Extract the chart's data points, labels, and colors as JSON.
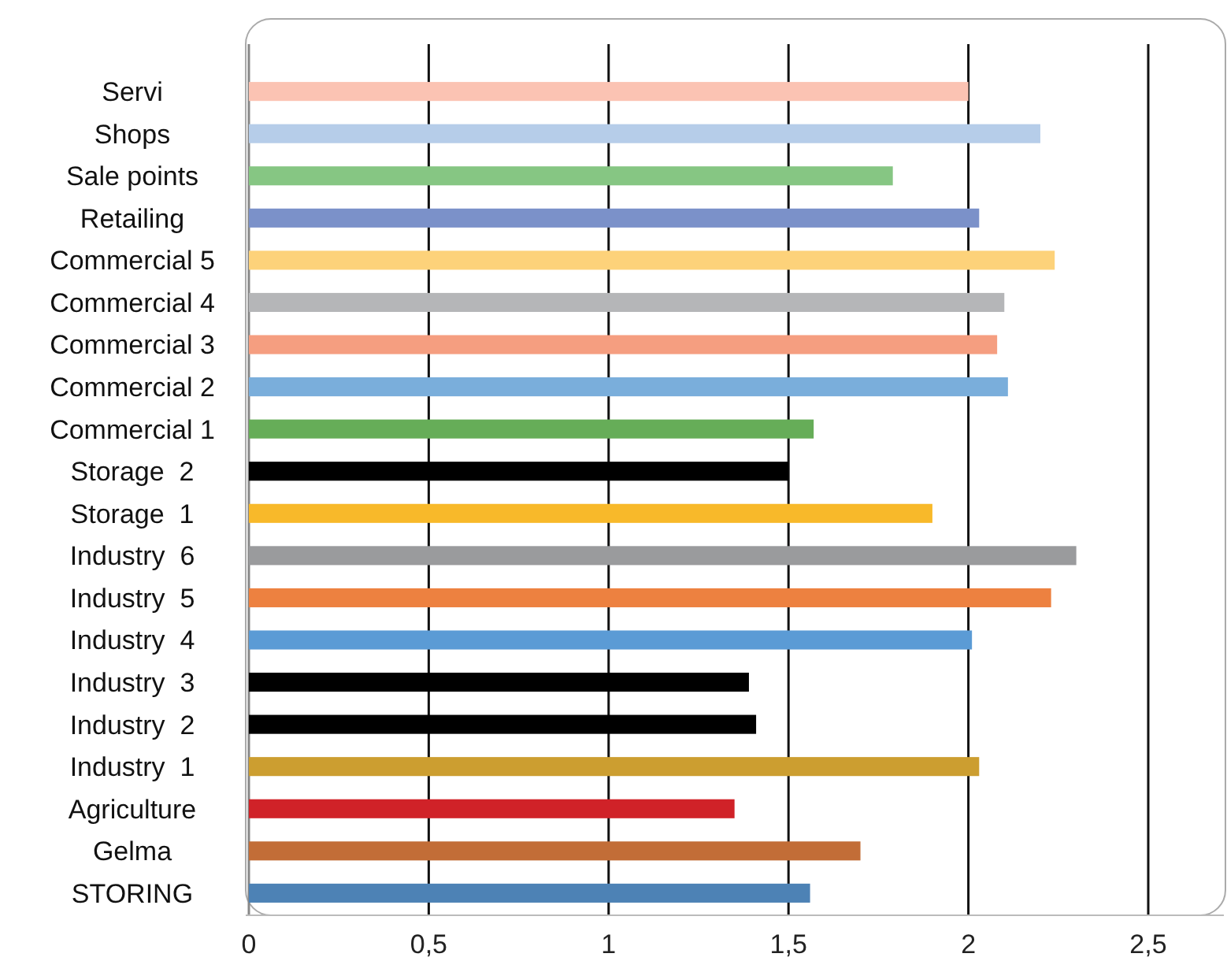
{
  "chart_data": {
    "type": "bar",
    "orientation": "horizontal",
    "categories": [
      "Servi",
      "Shops",
      "Sale points",
      "Retailing",
      "Commercial 5",
      "Commercial 4",
      "Commercial 3",
      "Commercial 2",
      "Commercial 1",
      "Storage  2",
      "Storage  1",
      "Industry  6",
      "Industry  5",
      "Industry  4",
      "Industry  3",
      "Industry  2",
      "Industry  1",
      "Agriculture",
      "Gelma",
      "STORING"
    ],
    "values": [
      2.0,
      2.2,
      1.79,
      2.03,
      2.24,
      2.1,
      2.08,
      2.11,
      1.57,
      1.5,
      1.9,
      2.3,
      2.23,
      2.01,
      1.39,
      1.41,
      2.03,
      1.35,
      1.7,
      1.56
    ],
    "colors": [
      "#fbc3b3",
      "#b6cde9",
      "#86c683",
      "#7b91c9",
      "#fdd27a",
      "#b5b6b8",
      "#f59e80",
      "#7aaedb",
      "#66ad58",
      "#000000",
      "#f8b92a",
      "#9a9b9d",
      "#ed8140",
      "#5b9bd5",
      "#000000",
      "#000000",
      "#cc9e30",
      "#d02228",
      "#c26d37",
      "#4d82b5"
    ],
    "xlim": [
      0,
      2.5
    ],
    "xticks": [
      0,
      {
        "value": 0.5,
        "label": "0,5"
      },
      1,
      {
        "value": 1.5,
        "label": "1,5"
      },
      2,
      {
        "value": 2.5,
        "label": "2,5"
      }
    ],
    "grid": "x"
  }
}
